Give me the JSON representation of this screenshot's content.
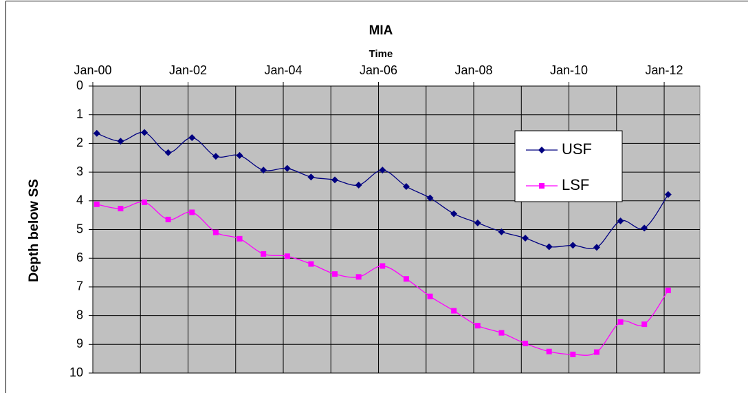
{
  "chart_data": {
    "type": "line",
    "title": "MIA",
    "x_label": "Time",
    "y_label": "Depth below SS",
    "x": [
      "2000-02",
      "2000-08",
      "2001-02",
      "2001-08",
      "2002-02",
      "2002-08",
      "2003-02",
      "2003-08",
      "2004-02",
      "2004-08",
      "2005-02",
      "2005-08",
      "2006-02",
      "2006-08",
      "2007-02",
      "2007-08",
      "2008-02",
      "2008-08",
      "2009-02",
      "2009-08",
      "2010-02",
      "2010-08",
      "2011-02",
      "2011-08",
      "2012-02"
    ],
    "series": [
      {
        "name": "USF",
        "color": "#000080",
        "marker": "diamond",
        "values": [
          1.65,
          1.92,
          1.62,
          2.32,
          1.8,
          2.45,
          2.42,
          2.93,
          2.87,
          3.17,
          3.27,
          3.45,
          2.93,
          3.5,
          3.9,
          4.45,
          4.77,
          5.08,
          5.3,
          5.6,
          5.55,
          5.62,
          4.7,
          4.95,
          3.78
        ]
      },
      {
        "name": "LSF",
        "color": "#ff00ff",
        "marker": "square",
        "values": [
          4.12,
          4.27,
          4.05,
          4.65,
          4.4,
          5.1,
          5.32,
          5.85,
          5.93,
          6.2,
          6.55,
          6.65,
          6.27,
          6.72,
          7.33,
          7.83,
          8.35,
          8.6,
          8.97,
          9.25,
          9.35,
          9.27,
          8.22,
          8.3,
          7.12
        ]
      }
    ],
    "xlim": [
      "2000-01",
      "2012-10"
    ],
    "xticks": [
      {
        "value": "2000-01",
        "label": "Jan-00"
      },
      {
        "value": "2002-01",
        "label": "Jan-02"
      },
      {
        "value": "2004-01",
        "label": "Jan-04"
      },
      {
        "value": "2006-01",
        "label": "Jan-06"
      },
      {
        "value": "2008-01",
        "label": "Jan-08"
      },
      {
        "value": "2010-01",
        "label": "Jan-10"
      },
      {
        "value": "2012-01",
        "label": "Jan-12"
      }
    ],
    "x_minor_ticks": [
      "2001-01",
      "2003-01",
      "2005-01",
      "2007-01",
      "2009-01",
      "2011-01"
    ],
    "ylim": [
      0,
      10
    ],
    "yticks": [
      0,
      1,
      2,
      3,
      4,
      5,
      6,
      7,
      8,
      9,
      10
    ],
    "y_inverted": true,
    "x_axis_position": "top",
    "grid": true,
    "plot_background": "#c0c0c0",
    "smooth": true
  }
}
